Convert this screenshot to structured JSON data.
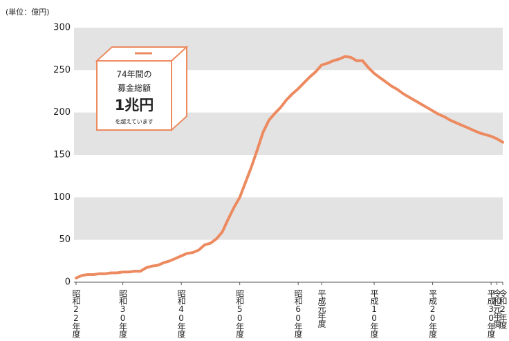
{
  "chart_data": {
    "type": "line",
    "unit_label": "(単位：億円)",
    "annotations": [
      "74年間の",
      "募金総額",
      "1兆円",
      "を超えています"
    ],
    "x": [
      1947,
      1948,
      1949,
      1950,
      1951,
      1952,
      1953,
      1954,
      1955,
      1956,
      1957,
      1958,
      1959,
      1960,
      1961,
      1962,
      1963,
      1964,
      1965,
      1966,
      1967,
      1968,
      1969,
      1970,
      1971,
      1972,
      1973,
      1974,
      1975,
      1976,
      1977,
      1978,
      1979,
      1980,
      1981,
      1982,
      1983,
      1984,
      1985,
      1986,
      1987,
      1988,
      1989,
      1990,
      1991,
      1992,
      1993,
      1994,
      1995,
      1996,
      1997,
      1998,
      1999,
      2000,
      2001,
      2002,
      2003,
      2004,
      2005,
      2006,
      2007,
      2008,
      2009,
      2010,
      2011,
      2012,
      2013,
      2014,
      2015,
      2016,
      2017,
      2018,
      2019,
      2020
    ],
    "values": [
      5,
      8,
      9,
      9,
      10,
      10,
      11,
      11,
      12,
      12,
      13,
      13,
      17,
      19,
      20,
      23,
      25,
      28,
      31,
      34,
      35,
      38,
      44,
      46,
      51,
      59,
      74,
      88,
      100,
      118,
      136,
      156,
      177,
      191,
      199,
      206,
      215,
      222,
      228,
      235,
      242,
      248,
      256,
      258,
      261,
      263,
      266,
      265,
      261,
      261,
      253,
      246,
      241,
      236,
      231,
      227,
      222,
      218,
      214,
      210,
      206,
      202,
      198,
      195,
      191,
      188,
      185,
      182,
      179,
      176,
      174,
      172,
      169,
      165
    ],
    "color": "#ec8a60",
    "xlim": [
      1947,
      2020
    ],
    "xticks": [
      {
        "value": 1947,
        "label": "昭和22年度"
      },
      {
        "value": 1955,
        "label": "昭和30年度"
      },
      {
        "value": 1965,
        "label": "昭和40年度"
      },
      {
        "value": 1975,
        "label": "昭和50年度"
      },
      {
        "value": 1985,
        "label": "昭和60年度"
      },
      {
        "value": 1989,
        "label": "平成元年度"
      },
      {
        "value": 1998,
        "label": "平成10年度"
      },
      {
        "value": 2008,
        "label": "平成20年度"
      },
      {
        "value": 2018,
        "label": "平成30年度"
      },
      {
        "value": 2019,
        "label": "令和元年度"
      },
      {
        "value": 2020,
        "label": "令和2年度"
      }
    ],
    "ylim": [
      0,
      300
    ],
    "yticks": [
      0,
      50,
      100,
      150,
      200,
      250,
      300
    ],
    "grid": "bands"
  }
}
